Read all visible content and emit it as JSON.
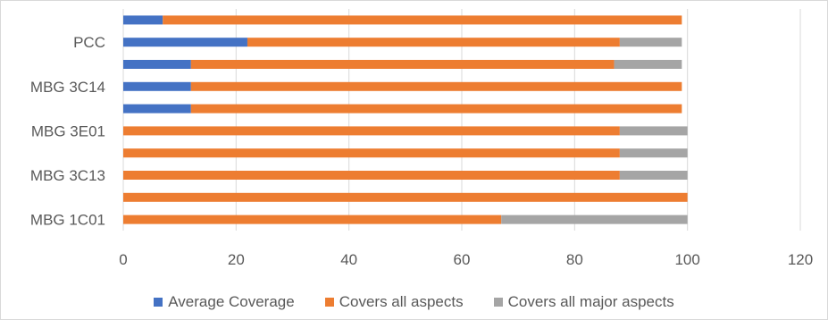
{
  "chart_data": {
    "type": "bar",
    "orientation": "horizontal",
    "stacked": true,
    "title": "",
    "xlabel": "",
    "ylabel": "",
    "categories": [
      "MBG 1C01",
      "",
      "MBG 3C13",
      "",
      "MBG 3E01",
      "",
      "MBG 3C14",
      "",
      "PCC",
      ""
    ],
    "series": [
      {
        "name": "Average Coverage",
        "color": "#4472c4",
        "values": [
          0,
          0,
          0,
          0,
          0,
          12,
          12,
          12,
          22,
          7
        ]
      },
      {
        "name": "Covers all aspects",
        "color": "#ed7d31",
        "values": [
          67,
          100,
          88,
          88,
          88,
          87,
          87,
          75,
          66,
          92
        ]
      },
      {
        "name": "Covers all major aspects",
        "color": "#a5a5a5",
        "values": [
          33,
          0,
          12,
          12,
          12,
          0,
          0,
          12,
          11,
          0
        ]
      }
    ],
    "xlim": [
      0,
      120
    ],
    "xticks": [
      "0",
      "20",
      "40",
      "60",
      "80",
      "100",
      "120"
    ],
    "grid": "vertical",
    "legend_position": "bottom"
  }
}
